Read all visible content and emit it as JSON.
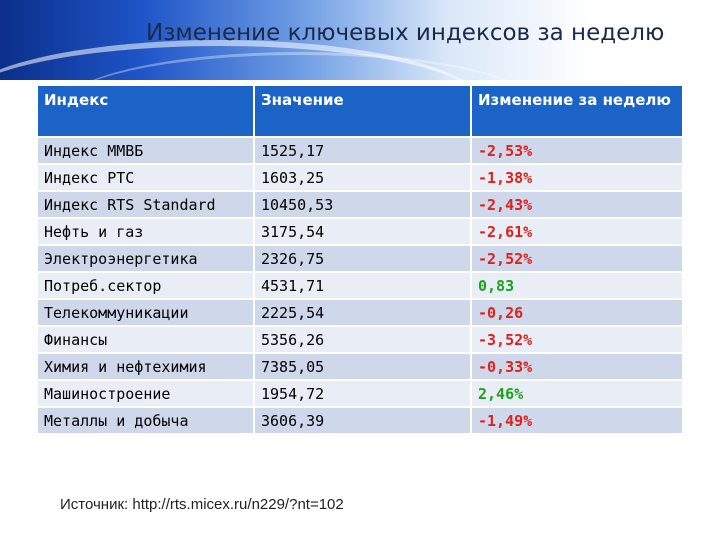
{
  "slide": {
    "title": "Изменение ключевых индексов за неделю",
    "source": "Источник: http://rts.micex.ru/n229/?nt=102"
  },
  "colors": {
    "header_blue": "#1b63c6",
    "negative": "#e0201b",
    "positive": "#1aa31a"
  },
  "table": {
    "headers": [
      "Индекс",
      "Значение",
      "Изменение за неделю"
    ],
    "rows": [
      {
        "index": "Индекс ММВБ",
        "value": "1525,17",
        "change": "-2,53%",
        "trend": "negative"
      },
      {
        "index": "Индекс РТС",
        "value": "1603,25",
        "change": "-1,38%",
        "trend": "negative"
      },
      {
        "index": "Индекс RTS Standard",
        "value": "10450,53",
        "change": "-2,43%",
        "trend": "negative"
      },
      {
        "index": "Нефть и газ",
        "value": "3175,54",
        "change": "-2,61%",
        "trend": "negative"
      },
      {
        "index": "Электроэнергетика",
        "value": "2326,75",
        "change": "-2,52%",
        "trend": "negative"
      },
      {
        "index": "Потреб.сектор",
        "value": "4531,71",
        "change": "0,83",
        "trend": "positive"
      },
      {
        "index": "Телекоммуникации",
        "value": "2225,54",
        "change": "-0,26",
        "trend": "negative"
      },
      {
        "index": "Финансы",
        "value": "5356,26",
        "change": "-3,52%",
        "trend": "negative"
      },
      {
        "index": "Химия и нефтехимия",
        "value": "7385,05",
        "change": "-0,33%",
        "trend": "negative"
      },
      {
        "index": "Машиностроение",
        "value": "1954,72",
        "change": "2,46%",
        "trend": "positive"
      },
      {
        "index": "Металлы и добыча",
        "value": "3606,39",
        "change": "-1,49%",
        "trend": "negative"
      }
    ]
  }
}
